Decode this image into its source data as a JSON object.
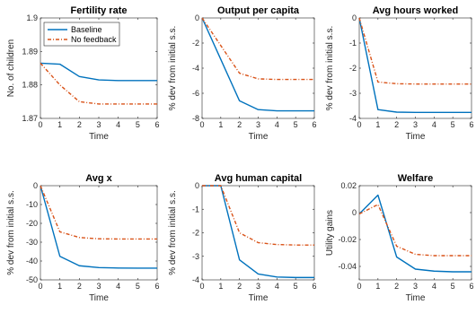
{
  "colors": {
    "baseline": "#0072BD",
    "no_feedback": "#D95319",
    "axis": "#262626"
  },
  "chart_data": [
    {
      "type": "line",
      "title": "Fertility rate",
      "xlabel": "Time",
      "ylabel": "No. of children",
      "xlim": [
        0,
        6
      ],
      "ylim": [
        1.87,
        1.9
      ],
      "xticks": [
        "0",
        "1",
        "2",
        "3",
        "4",
        "5",
        "6"
      ],
      "yticks": [
        1.87,
        1.88,
        1.89,
        1.9
      ],
      "ytick_labels": [
        "1.87",
        "1.88",
        "1.89",
        "1.9"
      ],
      "legend": {
        "position": "top-left",
        "entries": [
          "Baseline",
          "No feedback"
        ]
      },
      "x": [
        0,
        1,
        2,
        3,
        4,
        5,
        6
      ],
      "series": [
        {
          "name": "Baseline",
          "values": [
            1.8865,
            1.8862,
            1.8825,
            1.8815,
            1.8813,
            1.8813,
            1.8813
          ]
        },
        {
          "name": "No feedback",
          "values": [
            1.8865,
            1.88,
            1.875,
            1.8743,
            1.8743,
            1.8743,
            1.8743
          ]
        }
      ]
    },
    {
      "type": "line",
      "title": "Output per capita",
      "xlabel": "Time",
      "ylabel": "% dev from initial s.s.",
      "xlim": [
        0,
        6
      ],
      "ylim": [
        -8,
        0
      ],
      "xticks": [
        "0",
        "1",
        "2",
        "3",
        "4",
        "5",
        "6"
      ],
      "yticks": [
        -8,
        -6,
        -4,
        -2,
        0
      ],
      "ytick_labels": [
        "-8",
        "-6",
        "-4",
        "-2",
        "0"
      ],
      "x": [
        0,
        1,
        2,
        3,
        4,
        5,
        6
      ],
      "series": [
        {
          "name": "Baseline",
          "values": [
            0,
            -3.3,
            -6.6,
            -7.3,
            -7.4,
            -7.4,
            -7.4
          ]
        },
        {
          "name": "No feedback",
          "values": [
            0,
            -2.2,
            -4.4,
            -4.85,
            -4.9,
            -4.9,
            -4.9
          ]
        }
      ]
    },
    {
      "type": "line",
      "title": "Avg hours worked",
      "xlabel": "Time",
      "ylabel": "% dev from initial s.s.",
      "xlim": [
        0,
        6
      ],
      "ylim": [
        -4,
        0
      ],
      "xticks": [
        "0",
        "1",
        "2",
        "3",
        "4",
        "5",
        "6"
      ],
      "yticks": [
        -4,
        -3,
        -2,
        -1,
        0
      ],
      "ytick_labels": [
        "-4",
        "-3",
        "-2",
        "-1",
        "0"
      ],
      "x": [
        0,
        1,
        2,
        3,
        4,
        5,
        6
      ],
      "series": [
        {
          "name": "Baseline",
          "values": [
            0,
            -3.65,
            -3.75,
            -3.76,
            -3.76,
            -3.76,
            -3.76
          ]
        },
        {
          "name": "No feedback",
          "values": [
            0,
            -2.55,
            -2.62,
            -2.63,
            -2.63,
            -2.63,
            -2.63
          ]
        }
      ]
    },
    {
      "type": "line",
      "title": "Avg x",
      "xlabel": "Time",
      "ylabel": "% dev from initial s.s.",
      "xlim": [
        0,
        6
      ],
      "ylim": [
        -50,
        0
      ],
      "xticks": [
        "0",
        "1",
        "2",
        "3",
        "4",
        "5",
        "6"
      ],
      "yticks": [
        -50,
        -40,
        -30,
        -20,
        -10,
        0
      ],
      "ytick_labels": [
        "-50",
        "-40",
        "-30",
        "-20",
        "-10",
        "0"
      ],
      "x": [
        0,
        1,
        2,
        3,
        4,
        5,
        6
      ],
      "series": [
        {
          "name": "Baseline",
          "values": [
            0,
            -37.5,
            -42.5,
            -43.5,
            -43.7,
            -43.8,
            -43.8
          ]
        },
        {
          "name": "No feedback",
          "values": [
            0,
            -24.5,
            -27.5,
            -28.2,
            -28.3,
            -28.3,
            -28.3
          ]
        }
      ]
    },
    {
      "type": "line",
      "title": "Avg human capital",
      "xlabel": "Time",
      "ylabel": "% dev from initial s.s.",
      "xlim": [
        0,
        6
      ],
      "ylim": [
        -4,
        0
      ],
      "xticks": [
        "0",
        "1",
        "2",
        "3",
        "4",
        "5",
        "6"
      ],
      "yticks": [
        -4,
        -3,
        -2,
        -1,
        0
      ],
      "ytick_labels": [
        "-4",
        "-3",
        "-2",
        "-1",
        "0"
      ],
      "x": [
        0,
        1,
        2,
        3,
        4,
        5,
        6
      ],
      "series": [
        {
          "name": "Baseline",
          "values": [
            0,
            0,
            -3.15,
            -3.75,
            -3.88,
            -3.9,
            -3.9
          ]
        },
        {
          "name": "No feedback",
          "values": [
            0,
            0,
            -2.0,
            -2.42,
            -2.5,
            -2.52,
            -2.52
          ]
        }
      ]
    },
    {
      "type": "line",
      "title": "Welfare",
      "xlabel": "Time",
      "ylabel": "Utility gains",
      "xlim": [
        0,
        6
      ],
      "ylim": [
        -0.05,
        0.02
      ],
      "xticks": [
        "0",
        "1",
        "2",
        "3",
        "4",
        "5",
        "6"
      ],
      "yticks": [
        -0.04,
        -0.02,
        0,
        0.02
      ],
      "ytick_labels": [
        "-0.04",
        "-0.02",
        "0",
        "0.02"
      ],
      "x": [
        0,
        1,
        2,
        3,
        4,
        5,
        6
      ],
      "series": [
        {
          "name": "Baseline",
          "values": [
            -0.001,
            0.013,
            -0.033,
            -0.042,
            -0.0435,
            -0.044,
            -0.044
          ]
        },
        {
          "name": "No feedback",
          "values": [
            -0.001,
            0.006,
            -0.025,
            -0.031,
            -0.032,
            -0.032,
            -0.032
          ]
        }
      ]
    }
  ]
}
